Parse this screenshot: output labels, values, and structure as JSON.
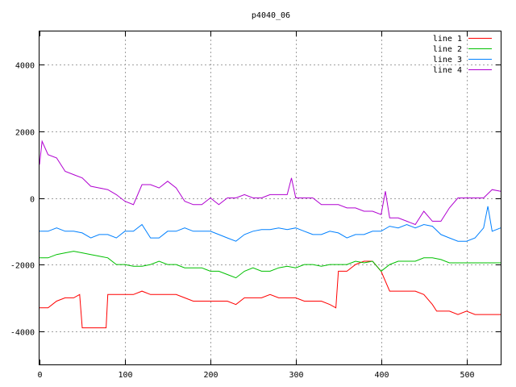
{
  "chart_data": {
    "type": "line",
    "title": "p4040_06",
    "xlabel": "",
    "ylabel": "",
    "xlim": [
      0,
      540
    ],
    "ylim": [
      -5000,
      5000
    ],
    "xticks": [
      0,
      100,
      200,
      300,
      400,
      500
    ],
    "yticks": [
      -4000,
      -2000,
      0,
      2000,
      4000
    ],
    "xtick_labels": [
      "0",
      "100",
      "200",
      "300",
      "400",
      "500"
    ],
    "ytick_labels": [
      "-4000",
      "-2000",
      "0",
      "2000",
      "4000"
    ],
    "grid": true,
    "legend_position": "top-right",
    "series": [
      {
        "name": "line 1",
        "color": "#ff0000",
        "x": [
          0,
          10,
          20,
          30,
          40,
          47,
          50,
          60,
          70,
          78,
          80,
          90,
          100,
          110,
          120,
          130,
          140,
          150,
          160,
          170,
          180,
          190,
          200,
          210,
          220,
          230,
          240,
          250,
          260,
          270,
          280,
          290,
          300,
          310,
          320,
          330,
          340,
          347,
          350,
          360,
          370,
          380,
          390,
          400,
          410,
          420,
          430,
          440,
          450,
          460,
          465,
          470,
          480,
          490,
          500,
          510,
          520,
          530,
          540
        ],
        "y": [
          -3300,
          -3300,
          -3100,
          -3000,
          -3000,
          -2900,
          -3900,
          -3900,
          -3900,
          -3900,
          -2900,
          -2900,
          -2900,
          -2900,
          -2800,
          -2900,
          -2900,
          -2900,
          -2900,
          -3000,
          -3100,
          -3100,
          -3100,
          -3100,
          -3100,
          -3200,
          -3000,
          -3000,
          -3000,
          -2900,
          -3000,
          -3000,
          -3000,
          -3100,
          -3100,
          -3100,
          -3200,
          -3300,
          -2200,
          -2200,
          -2000,
          -1900,
          -1900,
          -2200,
          -2800,
          -2800,
          -2800,
          -2800,
          -2900,
          -3200,
          -3400,
          -3400,
          -3400,
          -3500,
          -3400,
          -3500,
          -3500,
          -3500,
          -3500
        ]
      },
      {
        "name": "line 2",
        "color": "#00c000",
        "x": [
          0,
          10,
          20,
          30,
          40,
          50,
          60,
          70,
          80,
          90,
          100,
          110,
          120,
          130,
          140,
          150,
          160,
          170,
          180,
          190,
          200,
          210,
          220,
          230,
          240,
          250,
          260,
          270,
          280,
          290,
          300,
          310,
          320,
          330,
          340,
          350,
          360,
          370,
          380,
          390,
          400,
          410,
          420,
          430,
          440,
          450,
          460,
          470,
          480,
          490,
          500,
          510,
          520,
          530,
          540
        ],
        "y": [
          -1800,
          -1800,
          -1700,
          -1650,
          -1600,
          -1650,
          -1700,
          -1750,
          -1800,
          -2000,
          -2000,
          -2050,
          -2050,
          -2000,
          -1900,
          -2000,
          -2000,
          -2100,
          -2100,
          -2100,
          -2200,
          -2200,
          -2300,
          -2400,
          -2200,
          -2100,
          -2200,
          -2200,
          -2100,
          -2050,
          -2100,
          -2000,
          -2000,
          -2050,
          -2000,
          -2000,
          -2000,
          -1900,
          -1950,
          -1900,
          -2200,
          -2000,
          -1900,
          -1900,
          -1900,
          -1800,
          -1800,
          -1850,
          -1950,
          -1950,
          -1950,
          -1950,
          -1950,
          -1950,
          -1950
        ]
      },
      {
        "name": "line 3",
        "color": "#0080ff",
        "x": [
          0,
          10,
          20,
          30,
          40,
          50,
          60,
          70,
          80,
          90,
          100,
          110,
          120,
          130,
          140,
          150,
          160,
          170,
          180,
          190,
          200,
          210,
          220,
          230,
          240,
          250,
          260,
          270,
          280,
          290,
          300,
          310,
          320,
          330,
          340,
          350,
          360,
          370,
          380,
          390,
          400,
          410,
          420,
          430,
          440,
          450,
          460,
          470,
          480,
          490,
          500,
          510,
          520,
          525,
          530,
          540
        ],
        "y": [
          -1000,
          -1000,
          -900,
          -1000,
          -1000,
          -1050,
          -1200,
          -1100,
          -1100,
          -1200,
          -1000,
          -1000,
          -800,
          -1200,
          -1200,
          -1000,
          -1000,
          -900,
          -1000,
          -1000,
          -1000,
          -1100,
          -1200,
          -1300,
          -1100,
          -1000,
          -950,
          -950,
          -900,
          -950,
          -900,
          -1000,
          -1100,
          -1100,
          -1000,
          -1050,
          -1200,
          -1100,
          -1100,
          -1000,
          -1000,
          -850,
          -900,
          -800,
          -900,
          -800,
          -850,
          -1100,
          -1200,
          -1300,
          -1300,
          -1200,
          -900,
          -250,
          -1000,
          -900
        ]
      },
      {
        "name": "line 4",
        "color": "#b000d0",
        "x": [
          0,
          3,
          10,
          20,
          30,
          40,
          50,
          60,
          70,
          80,
          90,
          100,
          110,
          120,
          130,
          140,
          150,
          160,
          170,
          180,
          190,
          200,
          210,
          220,
          230,
          240,
          250,
          260,
          270,
          280,
          290,
          295,
          300,
          310,
          320,
          330,
          340,
          350,
          360,
          370,
          380,
          390,
          400,
          405,
          410,
          420,
          430,
          440,
          450,
          460,
          470,
          480,
          490,
          500,
          510,
          520,
          530,
          540
        ],
        "y": [
          1000,
          1700,
          1300,
          1200,
          800,
          700,
          600,
          350,
          300,
          250,
          100,
          -100,
          -200,
          400,
          400,
          300,
          500,
          300,
          -100,
          -200,
          -200,
          0,
          -200,
          0,
          0,
          100,
          0,
          0,
          100,
          100,
          100,
          600,
          0,
          0,
          0,
          -200,
          -200,
          -200,
          -300,
          -300,
          -400,
          -400,
          -500,
          200,
          -600,
          -600,
          -700,
          -800,
          -400,
          -700,
          -700,
          -300,
          0,
          0,
          0,
          0,
          250,
          200
        ]
      }
    ]
  }
}
